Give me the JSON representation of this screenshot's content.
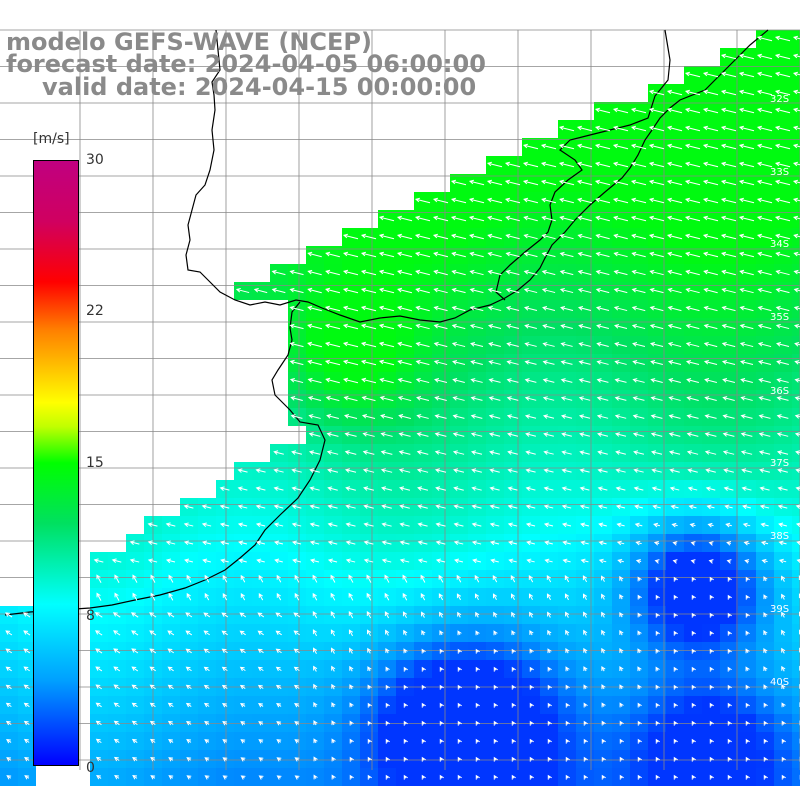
{
  "title": {
    "line1": "modelo GEFS-WAVE (NCEP)",
    "line2": "forecast date: 2024-04-05 06:00:00",
    "line3": "valid date: 2024-04-15 00:00:00"
  },
  "colorbar": {
    "unit": "[m/s]",
    "ticks": [
      "30",
      "22",
      "15",
      "8",
      "0"
    ],
    "tick_values": [
      30,
      22,
      15,
      8,
      0
    ],
    "range": [
      0,
      30
    ],
    "colors": [
      "#0000ff",
      "#00a0ff",
      "#00ffff",
      "#00ff00",
      "#ffff00",
      "#ff8000",
      "#ff0000",
      "#c00080"
    ]
  },
  "map": {
    "lat_labels": [
      "32S",
      "33S",
      "34S",
      "35S",
      "36S",
      "37S",
      "38S",
      "39S",
      "40S"
    ],
    "land_color": "#ffffff",
    "grid_color": "#888888",
    "coast_color": "#000000",
    "arrow_color": "#ffffff"
  }
}
